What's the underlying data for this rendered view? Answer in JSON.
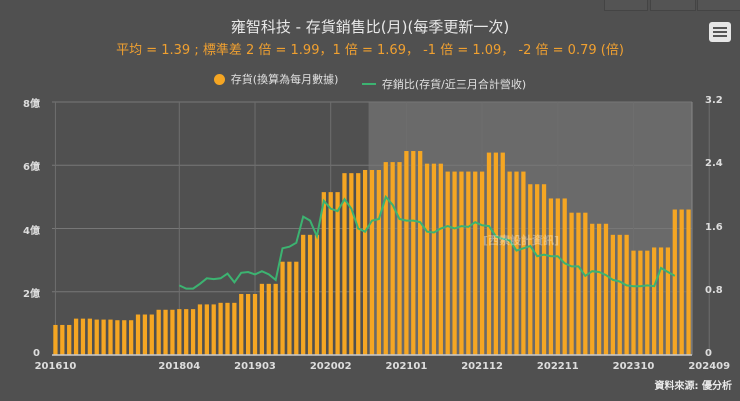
{
  "header": {
    "title": "雍智科技 - 存貨銷售比(月)(每季更新一次)",
    "stats": "平均 = 1.39 ; 標準差 2 倍 = 1.99，1 倍 = 1.69， -1 倍 = 1.09， -2 倍 = 0.79 (倍)",
    "menu_icon": "hamburger-menu-icon"
  },
  "legend": {
    "series1": "存貨(換算為每月數據)",
    "series2": "存銷比(存貨/近三月合計營收)"
  },
  "watermark": "[西索設計資訊]",
  "source": "資料來源: 優分析",
  "colors": {
    "bar": "#f5a623",
    "line": "#3cb371",
    "background": "#505050",
    "shade": "#6a6a6a",
    "subtitle": "#f0a030"
  },
  "chart_data": {
    "type": "bar+line",
    "title": "雍智科技 - 存貨銷售比(月)(每季更新一次)",
    "subtitle": "平均 = 1.39 ; 標準差 2 倍 = 1.99，1 倍 = 1.69， -1 倍 = 1.09， -2 倍 = 0.79 (倍)",
    "x_tick_labels": [
      "201610",
      "201804",
      "201903",
      "202002",
      "202101",
      "202112",
      "202211",
      "202310",
      "202409"
    ],
    "y_left": {
      "ticks": [
        "0",
        "2億",
        "4億",
        "6億",
        "8億"
      ],
      "range": [
        0,
        8
      ],
      "unit": "億"
    },
    "y_right": {
      "ticks": [
        "0",
        "0.8",
        "1.6",
        "2.4",
        "3.2"
      ],
      "range": [
        0,
        3.2
      ]
    },
    "shaded_region_start_index": 46,
    "series": [
      {
        "name": "存貨(換算為每月數據)",
        "type": "bar",
        "axis": "left",
        "values": [
          0.95,
          0.95,
          0.95,
          1.15,
          1.15,
          1.15,
          1.12,
          1.12,
          1.12,
          1.1,
          1.1,
          1.1,
          1.28,
          1.28,
          1.28,
          1.43,
          1.43,
          1.43,
          1.45,
          1.45,
          1.45,
          1.6,
          1.6,
          1.6,
          1.65,
          1.65,
          1.65,
          1.93,
          1.93,
          1.93,
          2.25,
          2.25,
          2.25,
          2.95,
          2.95,
          2.95,
          3.8,
          3.8,
          3.8,
          5.15,
          5.15,
          5.15,
          5.75,
          5.75,
          5.75,
          5.85,
          5.85,
          5.85,
          6.1,
          6.1,
          6.1,
          6.45,
          6.45,
          6.45,
          6.05,
          6.05,
          6.05,
          5.8,
          5.8,
          5.8,
          5.8,
          5.8,
          5.8,
          6.4,
          6.4,
          6.4,
          5.8,
          5.8,
          5.8,
          5.4,
          5.4,
          5.4,
          4.95,
          4.95,
          4.95,
          4.5,
          4.5,
          4.5,
          4.15,
          4.15,
          4.15,
          3.8,
          3.8,
          3.8,
          3.3,
          3.3,
          3.3,
          3.4,
          3.4,
          3.4,
          4.6,
          4.6,
          4.6
        ]
      },
      {
        "name": "存銷比(存貨/近三月合計營收)",
        "type": "line",
        "axis": "right",
        "start_index": 18,
        "values": [
          0.88,
          0.84,
          0.84,
          0.9,
          0.97,
          0.96,
          0.97,
          1.03,
          0.92,
          1.04,
          1.05,
          1.02,
          1.06,
          1.02,
          0.95,
          1.35,
          1.37,
          1.42,
          1.75,
          1.7,
          1.5,
          1.95,
          1.85,
          1.82,
          1.97,
          1.85,
          1.6,
          1.56,
          1.7,
          1.72,
          2.0,
          1.9,
          1.72,
          1.7,
          1.7,
          1.68,
          1.56,
          1.55,
          1.6,
          1.63,
          1.6,
          1.63,
          1.62,
          1.68,
          1.64,
          1.63,
          1.5,
          1.47,
          1.45,
          1.32,
          1.35,
          1.38,
          1.25,
          1.27,
          1.25,
          1.25,
          1.16,
          1.12,
          1.12,
          1.0,
          1.06,
          1.05,
          1.01,
          0.95,
          0.93,
          0.88,
          0.87,
          0.87,
          0.88,
          0.87,
          1.1,
          1.05,
          1.0
        ]
      }
    ]
  }
}
